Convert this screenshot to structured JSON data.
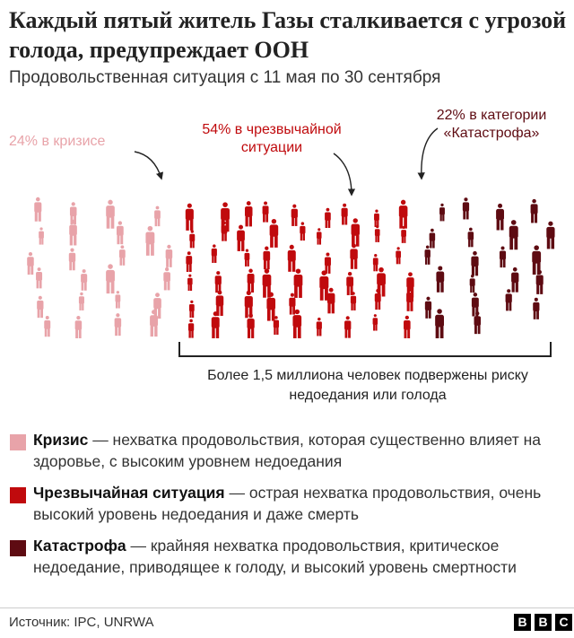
{
  "header": {
    "title": "Каждый пятый житель Газы сталкивается с угрозой голода, предупреждает ООН",
    "subtitle": "Продовольственная ситуация с 11 мая по 30 сентября"
  },
  "chart_data": {
    "type": "pictogram",
    "unit": "%",
    "categories": [
      "Кризис",
      "Чрезвычайная ситуация",
      "Катастрофа"
    ],
    "values": [
      24,
      54,
      22
    ],
    "colors": [
      "#e8a3a9",
      "#c00a0d",
      "#5e0b12"
    ],
    "annotations": [
      {
        "text": "24% в кризисе",
        "category": "Кризис"
      },
      {
        "text": "54% в чрезвычайной ситуации",
        "category": "Чрезвычайная ситуация"
      },
      {
        "text": "22% в категории «Катастрофа»",
        "category": "Катастрофа"
      }
    ],
    "bracket_note": "Более 1,5 миллиона человек подвержены риску недоедания или голода"
  },
  "annotations": {
    "crisis": "24% в кризисе",
    "emergency_l1": "54% в чрезвычайной",
    "emergency_l2": "ситуации",
    "catastrophe_l1": "22% в категории",
    "catastrophe_l2": "«Катастрофа»"
  },
  "note": "Более 1,5 миллиона человек подвержены риску недоедания или голода",
  "legend": [
    {
      "color": "#e8a3a9",
      "term": "Кризис",
      "text": " — нехватка продовольствия, которая существенно влияет на здоровье, с высоким уровнем недоедания"
    },
    {
      "color": "#c00a0d",
      "term": "Чрезвычайная ситуация",
      "text": " — острая нехватка продовольствия, очень высокий уровень недоедания и даже смерть"
    },
    {
      "color": "#5e0b12",
      "term": "Катастрофа",
      "text": " — крайняя нехватка продовольствия, критическое недоедание, приводящее к голоду, и высокий уровень смертности"
    }
  ],
  "footer": {
    "source": "Источник: IPC, UNRWA",
    "logo": [
      "B",
      "B",
      "C"
    ]
  }
}
